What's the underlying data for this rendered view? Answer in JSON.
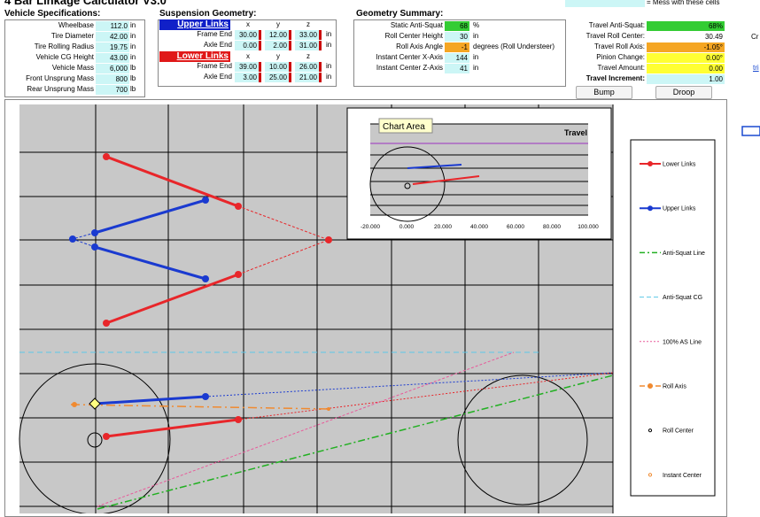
{
  "title": "4 Bar Linkage Calculator V3.0",
  "legend_note": "= Mess with these cells",
  "vehicle_specs": {
    "title": "Vehicle Specifications:",
    "rows": [
      [
        "Wheelbase",
        "112.0",
        "in"
      ],
      [
        "Tire Diameter",
        "42.00",
        "in"
      ],
      [
        "Tire Rolling Radius",
        "19.75",
        "in"
      ],
      [
        "Vehicle CG Height",
        "43.00",
        "in"
      ],
      [
        "Vehicle Mass",
        "6,000",
        "lb"
      ],
      [
        "Front Unsprung Mass",
        "800",
        "lb"
      ],
      [
        "Rear Unsprung Mass",
        "700",
        "lb"
      ]
    ]
  },
  "suspension": {
    "title": "Suspension Geometry:",
    "upper": "Upper Links",
    "lower": "Lower Links",
    "axes": [
      "x",
      "y",
      "z"
    ],
    "upper_rows": [
      [
        "Frame End",
        "30.00",
        "12.00",
        "33.00",
        "in"
      ],
      [
        "Axle End",
        "0.00",
        "2.00",
        "31.00",
        "in"
      ]
    ],
    "lower_rows": [
      [
        "Frame End",
        "39.00",
        "10.00",
        "26.00",
        "in"
      ],
      [
        "Axle End",
        "3.00",
        "25.00",
        "21.00",
        "in"
      ]
    ]
  },
  "summary": {
    "title": "Geometry Summary:",
    "rows": [
      [
        "Static Anti-Squat",
        "68",
        "%"
      ],
      [
        "Roll Center Height",
        "30",
        "in"
      ],
      [
        "Roll Axis Angle",
        "-1",
        "degrees (Roll Understeer)"
      ],
      [
        "Instant Center X-Axis",
        "144",
        "in"
      ],
      [
        "Instant Center Z-Axis",
        "41",
        "in"
      ]
    ]
  },
  "travel": {
    "rows": [
      [
        "Travel Anti-Squat:",
        "68%"
      ],
      [
        "Travel Roll Center:",
        "30.49"
      ],
      [
        "Travel Roll Axis:",
        "-1.05°"
      ],
      [
        "Pinion Change:",
        "0.00°"
      ],
      [
        "Travel Amount:",
        "0.00"
      ],
      [
        "Travel Increment:",
        "1.00"
      ]
    ]
  },
  "buttons": [
    "Bump",
    "Droop"
  ],
  "inset": {
    "title": "Travel",
    "tooltip": "Chart Area",
    "xticks": [
      "-20.000",
      "0.000",
      "20.000",
      "40.000",
      "60.000",
      "80.000",
      "100.000"
    ]
  },
  "legend": [
    "Lower Links",
    "Upper Links",
    "Anti-Squat Line",
    "Anti-Squat CG",
    "100% AS Line",
    "Roll Axis",
    "Roll Center",
    "Instant Center"
  ],
  "side_text": [
    "Cr",
    "tri"
  ]
}
